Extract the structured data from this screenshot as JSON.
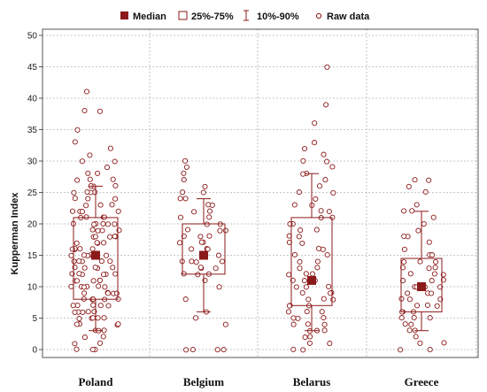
{
  "chart_data": {
    "type": "boxplot",
    "title": "",
    "xlabel": "",
    "ylabel": "Kupperman Index",
    "ylim": [
      0,
      50
    ],
    "yticks": [
      0,
      5,
      10,
      15,
      20,
      25,
      30,
      35,
      40,
      45,
      50
    ],
    "grid": true,
    "legend_placement": "top",
    "legend": {
      "median": "Median",
      "box": "25%-75%",
      "whisker": "10%-90%",
      "raw": "Raw data"
    },
    "colors": {
      "mark": "#8b1a1a",
      "grid": "#b5b5b5",
      "axis": "#555555"
    },
    "categories": [
      "Poland",
      "Belgium",
      "Belarus",
      "Greece"
    ],
    "groups": [
      {
        "name": "Poland",
        "median": 15,
        "q1": 8,
        "q3": 21,
        "p10": 3,
        "p90": 26,
        "raw": [
          0,
          0,
          0,
          1,
          1,
          2,
          2,
          3,
          3,
          3,
          4,
          4,
          4,
          4,
          5,
          5,
          5,
          5,
          5,
          6,
          6,
          6,
          6,
          6,
          7,
          7,
          7,
          7,
          7,
          8,
          8,
          8,
          8,
          8,
          8,
          9,
          9,
          9,
          9,
          9,
          10,
          10,
          10,
          10,
          10,
          10,
          11,
          11,
          11,
          11,
          11,
          12,
          12,
          12,
          12,
          12,
          12,
          13,
          13,
          13,
          13,
          13,
          14,
          14,
          14,
          14,
          14,
          15,
          15,
          15,
          15,
          15,
          15,
          15,
          16,
          16,
          16,
          16,
          16,
          17,
          17,
          17,
          17,
          18,
          18,
          18,
          18,
          18,
          19,
          19,
          19,
          19,
          20,
          20,
          20,
          20,
          20,
          20,
          21,
          21,
          21,
          21,
          22,
          22,
          22,
          22,
          23,
          23,
          23,
          24,
          24,
          24,
          25,
          25,
          25,
          25,
          26,
          26,
          26,
          27,
          27,
          27,
          28,
          28,
          29,
          30,
          30,
          31,
          32,
          33,
          35,
          38,
          38,
          41
        ]
      },
      {
        "name": "Belgium",
        "median": 15,
        "q1": 12,
        "q3": 20,
        "p10": 6,
        "p90": 24,
        "raw": [
          0,
          0,
          0,
          0,
          4,
          5,
          6,
          8,
          10,
          11,
          12,
          12,
          12,
          13,
          13,
          13,
          14,
          14,
          14,
          14,
          15,
          15,
          15,
          15,
          16,
          16,
          16,
          17,
          17,
          17,
          18,
          18,
          18,
          19,
          19,
          19,
          20,
          20,
          21,
          21,
          22,
          22,
          23,
          23,
          24,
          24,
          25,
          25,
          26,
          27,
          28,
          29,
          30
        ]
      },
      {
        "name": "Belarus",
        "median": 11,
        "q1": 7,
        "q3": 21,
        "p10": 3,
        "p90": 28,
        "raw": [
          0,
          0,
          1,
          1,
          2,
          2,
          3,
          3,
          3,
          4,
          4,
          4,
          5,
          5,
          5,
          6,
          6,
          6,
          7,
          7,
          7,
          8,
          8,
          8,
          9,
          9,
          9,
          10,
          10,
          10,
          11,
          11,
          11,
          12,
          12,
          12,
          13,
          13,
          14,
          14,
          15,
          15,
          16,
          16,
          17,
          17,
          18,
          18,
          19,
          19,
          20,
          20,
          21,
          21,
          22,
          22,
          23,
          23,
          24,
          25,
          25,
          26,
          27,
          28,
          28,
          29,
          30,
          30,
          31,
          32,
          33,
          36,
          39,
          45
        ]
      },
      {
        "name": "Greece",
        "median": 10,
        "q1": 6,
        "q3": 14.5,
        "p10": 3,
        "p90": 22,
        "raw": [
          0,
          0,
          1,
          1,
          2,
          3,
          3,
          4,
          4,
          5,
          5,
          5,
          6,
          6,
          6,
          7,
          7,
          7,
          8,
          8,
          8,
          9,
          9,
          9,
          10,
          10,
          10,
          10,
          11,
          11,
          11,
          12,
          12,
          12,
          13,
          13,
          13,
          14,
          14,
          14,
          15,
          15,
          16,
          17,
          18,
          18,
          19,
          20,
          21,
          22,
          22,
          23,
          25,
          26,
          27,
          27
        ]
      }
    ]
  }
}
